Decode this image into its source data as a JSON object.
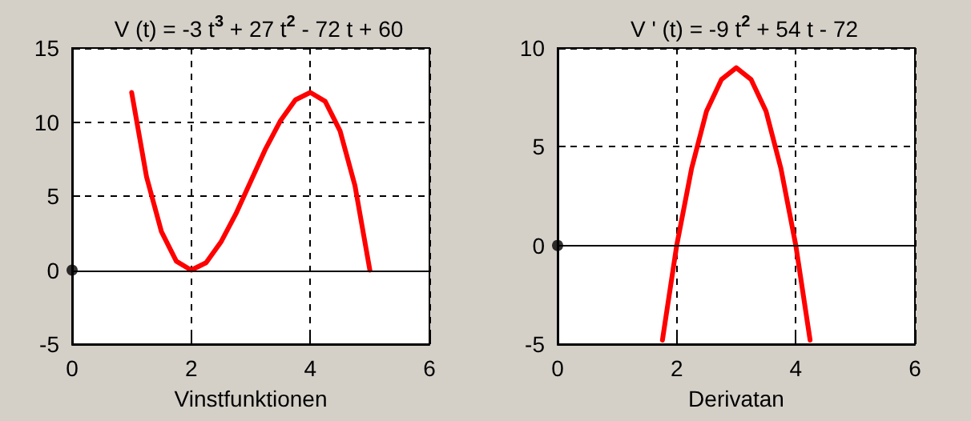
{
  "chart_data": [
    {
      "type": "line",
      "title": "V (t) = -3 t$^{3}$ + 27 t$^{2}$ - 72 t + 60",
      "xlabel": "Vinstfunktionen",
      "xlim": [
        0,
        6
      ],
      "xticks": [
        0,
        2,
        4,
        6
      ],
      "ylim": [
        -5,
        15
      ],
      "yticks": [
        -5,
        0,
        5,
        10,
        15
      ],
      "grid": true,
      "line_style": "solid",
      "series": [
        {
          "color": "#ff0000",
          "marker": "none",
          "x": [
            1,
            1.25,
            1.5,
            1.75,
            2,
            2.25,
            2.5,
            2.75,
            3,
            3.25,
            3.5,
            3.75,
            4,
            4.25,
            4.5,
            4.75,
            5
          ],
          "values": [
            12,
            6.3,
            2.6,
            0.6,
            0,
            0.5,
            1.9,
            3.8,
            6,
            8.2,
            10.1,
            11.5,
            12,
            11.4,
            9.4,
            5.7,
            0
          ]
        },
        {
          "type": "scatter",
          "color": "#000000",
          "marker": "circle",
          "x": [
            0
          ],
          "values": [
            0
          ]
        }
      ],
      "ref_lines": [
        {
          "axis": "y",
          "value": 0,
          "color": "#000000",
          "line_style": "solid"
        }
      ]
    },
    {
      "type": "line",
      "title": "V ' (t) = -9 t$^{2}$ + 54 t - 72",
      "xlabel": "Derivatan",
      "xlim": [
        0,
        6
      ],
      "xticks": [
        0,
        2,
        4,
        6
      ],
      "ylim": [
        -5,
        10
      ],
      "yticks": [
        -5,
        0,
        5,
        10
      ],
      "grid": true,
      "line_style": "solid",
      "series": [
        {
          "color": "#ff0000",
          "marker": "none",
          "x": [
            1.76,
            2,
            2.25,
            2.5,
            2.75,
            3,
            3.25,
            3.5,
            3.75,
            4,
            4.24
          ],
          "values": [
            -4.8,
            0,
            3.9,
            6.8,
            8.4,
            9,
            8.4,
            6.8,
            3.9,
            0,
            -4.8
          ]
        },
        {
          "type": "scatter",
          "color": "#000000",
          "marker": "circle",
          "x": [
            0
          ],
          "values": [
            0
          ]
        }
      ],
      "ref_lines": [
        {
          "axis": "y",
          "value": 0,
          "color": "#000000",
          "line_style": "solid"
        }
      ]
    }
  ]
}
